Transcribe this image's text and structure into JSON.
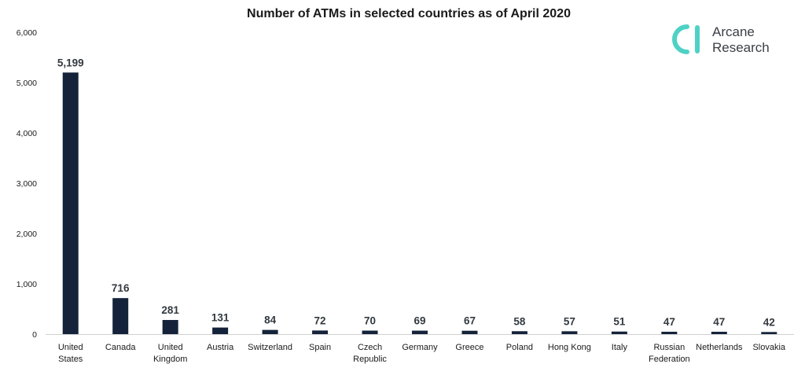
{
  "chart_data": {
    "type": "bar",
    "title": "Number of ATMs in selected countries as of April 2020",
    "xlabel": "",
    "ylabel": "",
    "ylim": [
      0,
      6000
    ],
    "yticks": [
      "0",
      "1,000",
      "2,000",
      "3,000",
      "4,000",
      "5,000",
      "6,000"
    ],
    "ytick_values": [
      0,
      1000,
      2000,
      3000,
      4000,
      5000,
      6000
    ],
    "categories": [
      [
        "United",
        "States"
      ],
      [
        "Canada"
      ],
      [
        "United",
        "Kingdom"
      ],
      [
        "Austria"
      ],
      [
        "Switzerland"
      ],
      [
        "Spain"
      ],
      [
        "Czech",
        "Republic"
      ],
      [
        "Germany"
      ],
      [
        "Greece"
      ],
      [
        "Poland"
      ],
      [
        "Hong Kong"
      ],
      [
        "Italy"
      ],
      [
        "Russian",
        "Federation"
      ],
      [
        "Netherlands"
      ],
      [
        "Slovakia"
      ]
    ],
    "values": [
      5199,
      716,
      281,
      131,
      84,
      72,
      70,
      69,
      67,
      58,
      57,
      51,
      47,
      47,
      42
    ],
    "data_labels": [
      "5,199",
      "716",
      "281",
      "131",
      "84",
      "72",
      "70",
      "69",
      "67",
      "58",
      "57",
      "51",
      "47",
      "47",
      "42"
    ],
    "grid": false,
    "legend": "none",
    "bar_color": "#14233a"
  },
  "brand": {
    "line1": "Arcane",
    "line2": "Research",
    "icon": "arcane-logo-icon",
    "accent": "#4fd1c5"
  }
}
